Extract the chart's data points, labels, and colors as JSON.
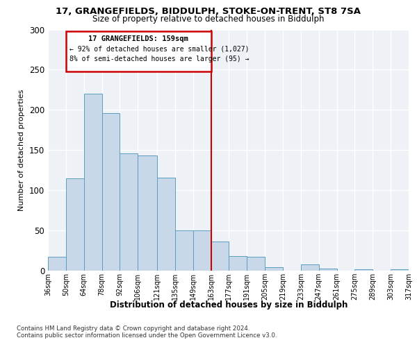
{
  "title_line1": "17, GRANGEFIELDS, BIDDULPH, STOKE-ON-TRENT, ST8 7SA",
  "title_line2": "Size of property relative to detached houses in Biddulph",
  "xlabel": "Distribution of detached houses by size in Biddulph",
  "ylabel": "Number of detached properties",
  "bar_edges": [
    36,
    50,
    64,
    78,
    92,
    106,
    121,
    135,
    149,
    163,
    177,
    191,
    205,
    219,
    233,
    247,
    261,
    275,
    289,
    303,
    317
  ],
  "bar_heights": [
    17,
    115,
    220,
    196,
    146,
    143,
    116,
    50,
    50,
    36,
    18,
    17,
    4,
    0,
    8,
    3,
    0,
    2,
    0,
    2
  ],
  "bar_color": "#c8d8e8",
  "bar_edge_color": "#5a9ec0",
  "vline_x": 163,
  "vline_color": "#cc0000",
  "annotation_line1": "17 GRANGEFIELDS: 159sqm",
  "annotation_line2": "← 92% of detached houses are smaller (1,027)",
  "annotation_line3": "8% of semi-detached houses are larger (95) →",
  "annotation_box_color": "#cc0000",
  "ylim": [
    0,
    300
  ],
  "yticks": [
    0,
    50,
    100,
    150,
    200,
    250,
    300
  ],
  "background_color": "#eef2f7",
  "footnote_line1": "Contains HM Land Registry data © Crown copyright and database right 2024.",
  "footnote_line2": "Contains public sector information licensed under the Open Government Licence v3.0."
}
